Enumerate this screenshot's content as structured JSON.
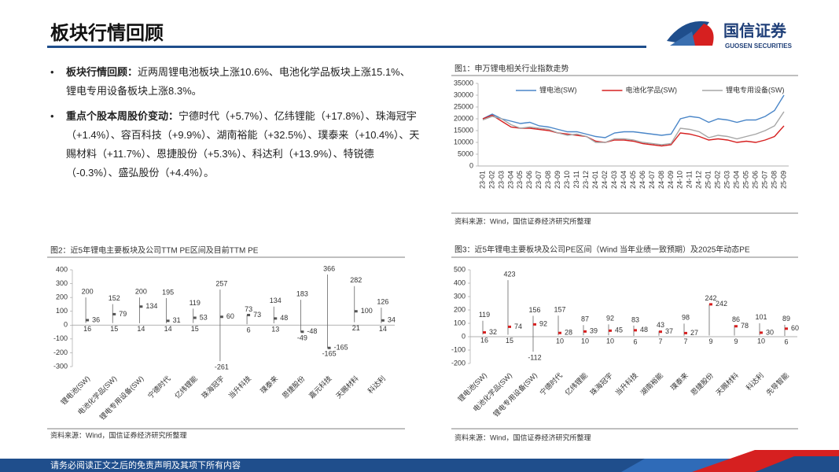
{
  "header": {
    "title": "板块行情回顾",
    "logo_cn": "国信证券",
    "logo_en": "GUOSEN SECURITIES"
  },
  "bullets": [
    {
      "lead": "板块行情回顾：",
      "text": "近两周锂电池板块上涨10.6%、电池化学品板块上涨15.1%、锂电专用设备板块上涨8.3%。"
    },
    {
      "lead": "重点个股本周股价变动：",
      "text": "宁德时代（+5.7%）、亿纬锂能（+17.8%）、珠海冠宇（+1.4%）、容百科技（+9.9%）、湖南裕能（+32.5%）、璞泰来（+10.4%）、天赐材料（+11.7%）、恩捷股份（+5.3%）、科达利（+13.9%）、特锐德（-0.3%）、盛弘股份（+4.4%）。"
    }
  ],
  "footer": "请务必阅读正文之后的免责声明及其项下所有内容",
  "chart_data": [
    {
      "type": "line",
      "title": "图1：申万锂电相关行业指数走势",
      "source": "资料来源：Wind，国信证券经济研究所整理",
      "legend": "top",
      "categories": [
        "23-01",
        "23-02",
        "23-03",
        "23-04",
        "23-05",
        "23-06",
        "23-07",
        "23-08",
        "23-09",
        "23-10",
        "23-11",
        "23-12",
        "24-01",
        "24-02",
        "24-03",
        "24-04",
        "24-05",
        "24-06",
        "24-07",
        "24-08",
        "24-09",
        "24-10",
        "24-11",
        "24-12",
        "25-01",
        "25-02",
        "25-03",
        "25-04",
        "25-05",
        "25-06",
        "25-07",
        "25-08",
        "25-09"
      ],
      "series": [
        {
          "name": "锂电池(SW)",
          "color": "#4a86c8",
          "values": [
            20000,
            22000,
            20000,
            19000,
            18000,
            18500,
            17000,
            16500,
            15500,
            14500,
            14500,
            13500,
            12500,
            12000,
            14000,
            14500,
            14500,
            14000,
            13500,
            13000,
            13500,
            20000,
            21000,
            20500,
            18500,
            20000,
            19500,
            18500,
            19500,
            19500,
            21000,
            23500,
            30000
          ]
        },
        {
          "name": "电池化学品(SW)",
          "color": "#d62020",
          "values": [
            20000,
            21500,
            19000,
            16500,
            16000,
            16000,
            15500,
            15000,
            14000,
            13500,
            13000,
            12500,
            10500,
            10000,
            11000,
            11000,
            10500,
            9500,
            9000,
            8500,
            9000,
            14000,
            13500,
            12500,
            11000,
            11500,
            11000,
            10000,
            10500,
            10000,
            11000,
            12500,
            17000
          ]
        },
        {
          "name": "锂电专用设备(SW)",
          "color": "#a6a6a6",
          "values": [
            19500,
            21000,
            20000,
            17500,
            16000,
            16500,
            16000,
            15500,
            14000,
            13000,
            13500,
            12500,
            10000,
            10000,
            11500,
            11500,
            11000,
            10000,
            9500,
            9000,
            9500,
            16000,
            15500,
            14500,
            12000,
            13000,
            12500,
            11500,
            12500,
            13500,
            15000,
            17000,
            23000
          ]
        }
      ],
      "ylim": [
        0,
        35000
      ],
      "yticks": [
        0,
        5000,
        10000,
        15000,
        20000,
        25000,
        30000,
        35000
      ]
    },
    {
      "type": "range",
      "title": "图2：近5年锂电主要板块及公司TTM PE区间及目前TTM PE",
      "source": "资料来源：Wind，国信证券经济研究所整理",
      "marker_color": "#555555",
      "categories": [
        "锂电池(SW)",
        "电池化学品(SW)",
        "锂电专用设备(SW)",
        "宁德时代",
        "亿纬锂能",
        "珠海冠宇",
        "当升科技",
        "璞泰来",
        "恩捷股份",
        "嘉元科技",
        "天赐材料",
        "科达利"
      ],
      "high": [
        200,
        152,
        200,
        195,
        119,
        257,
        73,
        134,
        183,
        366,
        282,
        126
      ],
      "current": [
        36,
        79,
        134,
        31,
        53,
        60,
        73,
        48,
        -48,
        -165,
        100,
        34
      ],
      "low": [
        16,
        15,
        14,
        14,
        15,
        -261,
        6,
        13,
        -49,
        -165,
        21,
        14
      ],
      "ylim": [
        -300,
        400
      ],
      "yticks": [
        -300,
        -200,
        -100,
        0,
        100,
        200,
        300,
        400
      ]
    },
    {
      "type": "range",
      "title": "图3：近5年锂电主要板块及公司PE区间（Wind 当年业绩一致预期）及2025年动态PE",
      "source": "资料来源：Wind，国信证券经济研究所整理",
      "marker_color": "#d62020",
      "categories": [
        "锂电池(SW)",
        "电池化学品(SW)",
        "锂电专用设备(SW)",
        "宁德时代",
        "亿纬锂能",
        "珠海冠宇",
        "当升科技",
        "湖南裕能",
        "璞泰来",
        "恩捷股份",
        "天赐材料",
        "科达利",
        "先导智能"
      ],
      "high": [
        119,
        423,
        156,
        157,
        87,
        92,
        83,
        43,
        98,
        242,
        86,
        101,
        89
      ],
      "current": [
        32,
        74,
        92,
        28,
        39,
        45,
        48,
        37,
        27,
        242,
        78,
        30,
        60
      ],
      "low": [
        16,
        15,
        -112,
        10,
        10,
        10,
        6,
        7,
        7,
        9,
        9,
        10,
        6
      ],
      "ylim": [
        -200,
        500
      ],
      "yticks": [
        -200,
        -100,
        0,
        100,
        200,
        300,
        400,
        500
      ]
    }
  ]
}
